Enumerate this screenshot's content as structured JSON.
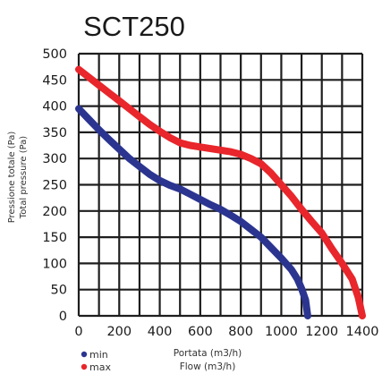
{
  "chart_data": {
    "type": "line",
    "title": "SCT250",
    "ylabel": "Pressione totale (Pa)",
    "ylabel2": "Total pressure (Pa)",
    "xlabel": "Portata (m3/h)",
    "xlabel2": "Flow (m3/h)",
    "xlim": [
      0,
      1400
    ],
    "ylim": [
      0,
      500
    ],
    "xticks": [
      "0",
      "200",
      "400",
      "600",
      "800",
      "1000",
      "1200",
      "1400"
    ],
    "yticks": [
      "0",
      "50",
      "100",
      "150",
      "200",
      "250",
      "300",
      "350",
      "400",
      "450",
      "500"
    ],
    "grid": true,
    "legend_position": "bottom-left",
    "series": [
      {
        "name": "min",
        "color": "#2b3590",
        "x": [
          0,
          50,
          100,
          150,
          200,
          250,
          300,
          350,
          400,
          450,
          500,
          550,
          600,
          650,
          700,
          750,
          800,
          850,
          900,
          950,
          1000,
          1050,
          1080,
          1100,
          1120,
          1130
        ],
        "y": [
          395,
          375,
          355,
          336,
          318,
          300,
          285,
          270,
          258,
          249,
          242,
          232,
          222,
          212,
          203,
          192,
          180,
          165,
          150,
          130,
          110,
          88,
          70,
          52,
          30,
          0
        ]
      },
      {
        "name": "max",
        "color": "#e8262b",
        "x": [
          0,
          50,
          100,
          150,
          200,
          250,
          300,
          350,
          400,
          450,
          500,
          550,
          600,
          650,
          700,
          750,
          800,
          850,
          900,
          950,
          1000,
          1050,
          1100,
          1150,
          1200,
          1250,
          1300,
          1350,
          1380,
          1400
        ],
        "y": [
          470,
          455,
          440,
          425,
          410,
          395,
          380,
          365,
          352,
          340,
          330,
          325,
          322,
          319,
          316,
          313,
          308,
          300,
          290,
          272,
          250,
          228,
          203,
          180,
          158,
          128,
          100,
          70,
          35,
          0
        ]
      }
    ]
  }
}
